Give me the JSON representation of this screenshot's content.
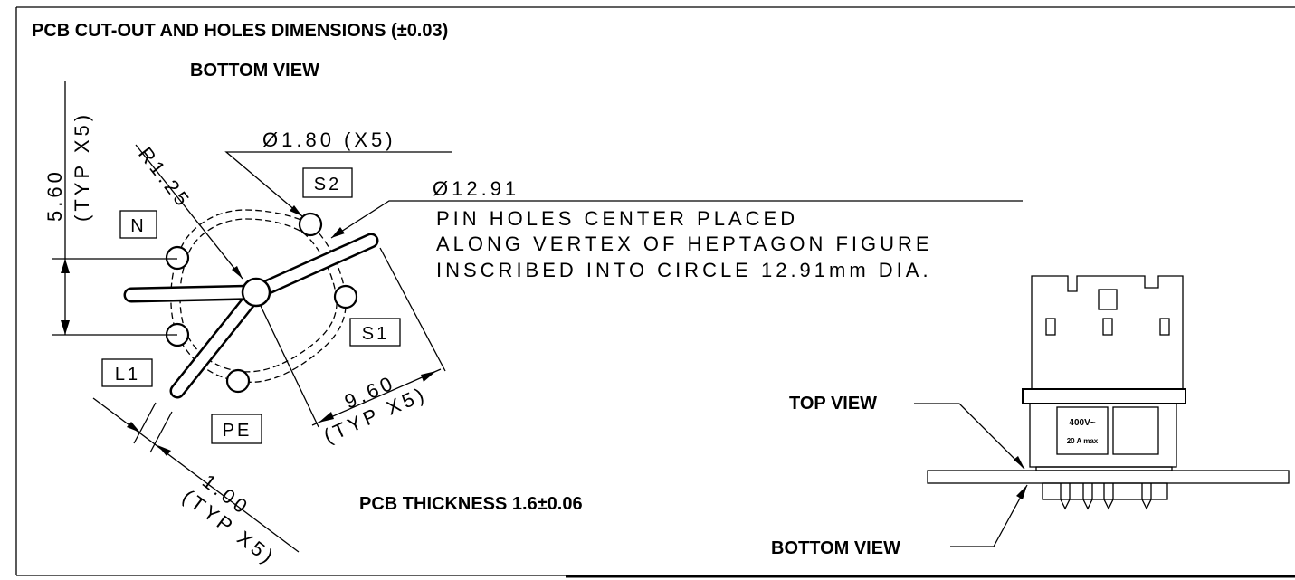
{
  "header": {
    "title": "PCB CUT-OUT AND HOLES DIMENSIONS (±0.03)",
    "view": "BOTTOM VIEW"
  },
  "dimensions": {
    "pitch": {
      "value": "5.60",
      "note": "(TYP X5)"
    },
    "radius": "R1.25",
    "hole_diameter": "Ø1.80 (X5)",
    "circle_diameter": "Ø12.91",
    "slot_length": {
      "value": "9.60",
      "note": "(TYP X5)"
    },
    "slot_width": {
      "value": "1.00",
      "note": "(TYP X5)"
    }
  },
  "pins": {
    "n": "N",
    "s2": "S2",
    "s1": "S1",
    "pe": "PE",
    "l1": "L1"
  },
  "notes": [
    "PIN HOLES CENTER PLACED",
    "ALONG VERTEX OF HEPTAGON FIGURE",
    "INSCRIBED INTO CIRCLE 12.91mm DIA."
  ],
  "pcb_thickness": "PCB THICKNESS 1.6±0.06",
  "side_view": {
    "top_label": "TOP VIEW",
    "bottom_label": "BOTTOM VIEW",
    "rating": [
      "400V~",
      "20 A max"
    ]
  }
}
